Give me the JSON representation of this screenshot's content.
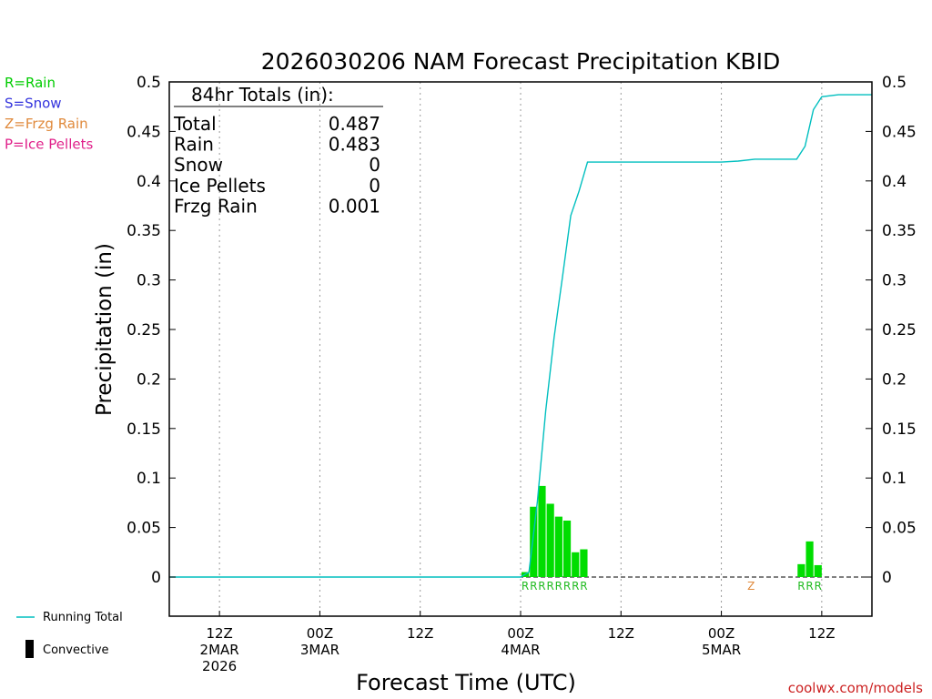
{
  "legend": {
    "precip_types": [
      {
        "label": "R=Rain",
        "color": "#00cc00"
      },
      {
        "label": "S=Snow",
        "color": "#3333dd"
      },
      {
        "label": "Z=Frzg Rain",
        "color": "#e08a3c"
      },
      {
        "label": "P=Ice Pellets",
        "color": "#e0208a"
      }
    ],
    "running_total_label": "Running Total",
    "convective_label": "Convective"
  },
  "totals": {
    "header": "84hr Totals (in):",
    "rows": [
      {
        "label": "Total",
        "value": "0.487"
      },
      {
        "label": "Rain",
        "value": "0.483"
      },
      {
        "label": "Snow",
        "value": "0"
      },
      {
        "label": "Ice Pellets",
        "value": "0"
      },
      {
        "label": "Frzg Rain",
        "value": "0.001"
      }
    ]
  },
  "credit": "coolwx.com/models",
  "colors": {
    "rain_bar": "#00dd00",
    "running_total": "#00bfbf",
    "frzg_rain": "#e08a3c"
  },
  "chart_data": {
    "type": "bar",
    "title": "2026030206 NAM Forecast Precipitation KBID",
    "xlabel": "Forecast Time (UTC)",
    "ylabel": "Precipitation (in)",
    "ylim": [
      0,
      0.5
    ],
    "y_ticks": [
      "0",
      "0.05",
      "0.1",
      "0.15",
      "0.2",
      "0.25",
      "0.3",
      "0.35",
      "0.4",
      "0.45",
      "0.5"
    ],
    "x_range_hours": [
      0,
      84
    ],
    "x_ticks": [
      {
        "hour": 6,
        "lines": [
          "12Z",
          "2MAR",
          "2026"
        ]
      },
      {
        "hour": 18,
        "lines": [
          "00Z",
          "3MAR"
        ]
      },
      {
        "hour": 30,
        "lines": [
          "12Z"
        ]
      },
      {
        "hour": 42,
        "lines": [
          "00Z",
          "4MAR"
        ]
      },
      {
        "hour": 54,
        "lines": [
          "12Z"
        ]
      },
      {
        "hour": 66,
        "lines": [
          "00Z",
          "5MAR"
        ]
      },
      {
        "hour": 78,
        "lines": [
          "12Z"
        ]
      }
    ],
    "grid": "vertical-dotted",
    "hourly_precip": [
      {
        "hour": 43,
        "value": 0.005,
        "type": "R"
      },
      {
        "hour": 44,
        "value": 0.071,
        "type": "R"
      },
      {
        "hour": 45,
        "value": 0.092,
        "type": "R"
      },
      {
        "hour": 46,
        "value": 0.074,
        "type": "R"
      },
      {
        "hour": 47,
        "value": 0.061,
        "type": "R"
      },
      {
        "hour": 48,
        "value": 0.057,
        "type": "R"
      },
      {
        "hour": 49,
        "value": 0.025,
        "type": "R"
      },
      {
        "hour": 50,
        "value": 0.028,
        "type": "R"
      },
      {
        "hour": 70,
        "value": 0.001,
        "type": "Z"
      },
      {
        "hour": 76,
        "value": 0.013,
        "type": "R"
      },
      {
        "hour": 77,
        "value": 0.036,
        "type": "R"
      },
      {
        "hour": 78,
        "value": 0.012,
        "type": "R"
      }
    ],
    "running_total": [
      {
        "hour": 0,
        "value": 0
      },
      {
        "hour": 42,
        "value": 0
      },
      {
        "hour": 43,
        "value": 0.005
      },
      {
        "hour": 44,
        "value": 0.076
      },
      {
        "hour": 45,
        "value": 0.168
      },
      {
        "hour": 46,
        "value": 0.242
      },
      {
        "hour": 47,
        "value": 0.303
      },
      {
        "hour": 48,
        "value": 0.365
      },
      {
        "hour": 49,
        "value": 0.39
      },
      {
        "hour": 50,
        "value": 0.419
      },
      {
        "hour": 66,
        "value": 0.419
      },
      {
        "hour": 68,
        "value": 0.42
      },
      {
        "hour": 70,
        "value": 0.422
      },
      {
        "hour": 75,
        "value": 0.422
      },
      {
        "hour": 76,
        "value": 0.435
      },
      {
        "hour": 77,
        "value": 0.472
      },
      {
        "hour": 78,
        "value": 0.485
      },
      {
        "hour": 80,
        "value": 0.487
      },
      {
        "hour": 84,
        "value": 0.487
      }
    ]
  }
}
